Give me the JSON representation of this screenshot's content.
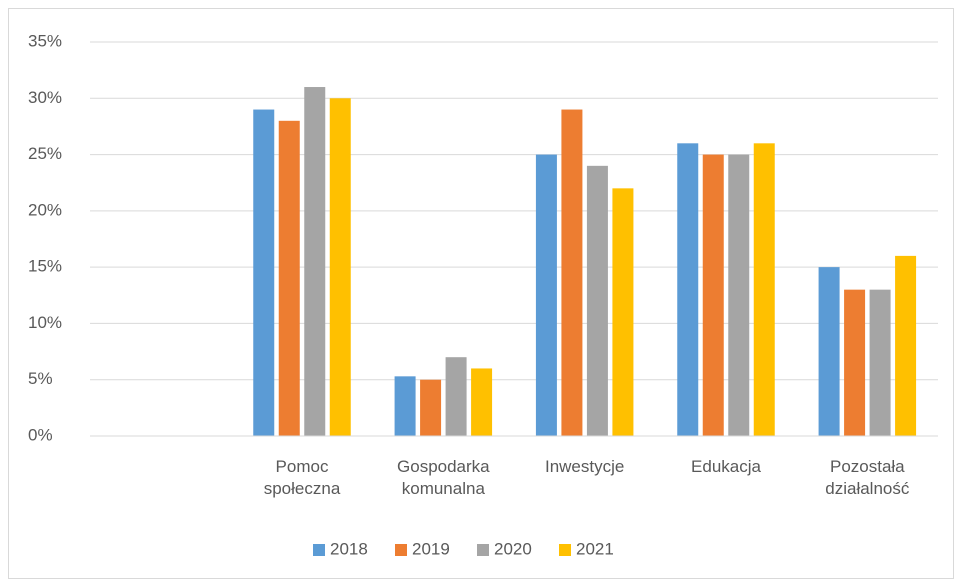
{
  "chart_data": {
    "type": "bar",
    "categories": [
      null,
      "Pomoc społeczna",
      "Gospodarka komunalna",
      "Inwestycje",
      "Edukacja",
      "Pozostała działalność"
    ],
    "series": [
      {
        "name": "2018",
        "color": "#5b9bd5",
        "values": [
          null,
          29,
          5.3,
          25,
          26,
          15
        ]
      },
      {
        "name": "2019",
        "color": "#ed7d31",
        "values": [
          null,
          28,
          5,
          29,
          25,
          13
        ]
      },
      {
        "name": "2020",
        "color": "#a5a5a5",
        "values": [
          null,
          31,
          7,
          24,
          25,
          13
        ]
      },
      {
        "name": "2021",
        "color": "#ffc000",
        "values": [
          null,
          30,
          6,
          22,
          26,
          16
        ]
      }
    ],
    "ylim": [
      0,
      35
    ],
    "yticks": [
      {
        "value": 0,
        "label": "0%"
      },
      {
        "value": 5,
        "label": "5%"
      },
      {
        "value": 10,
        "label": "10%"
      },
      {
        "value": 15,
        "label": "15%"
      },
      {
        "value": 20,
        "label": "20%"
      },
      {
        "value": 25,
        "label": "25%"
      },
      {
        "value": 30,
        "label": "30%"
      },
      {
        "value": 35,
        "label": "35%"
      }
    ],
    "grid": true,
    "legend": "bottom"
  }
}
